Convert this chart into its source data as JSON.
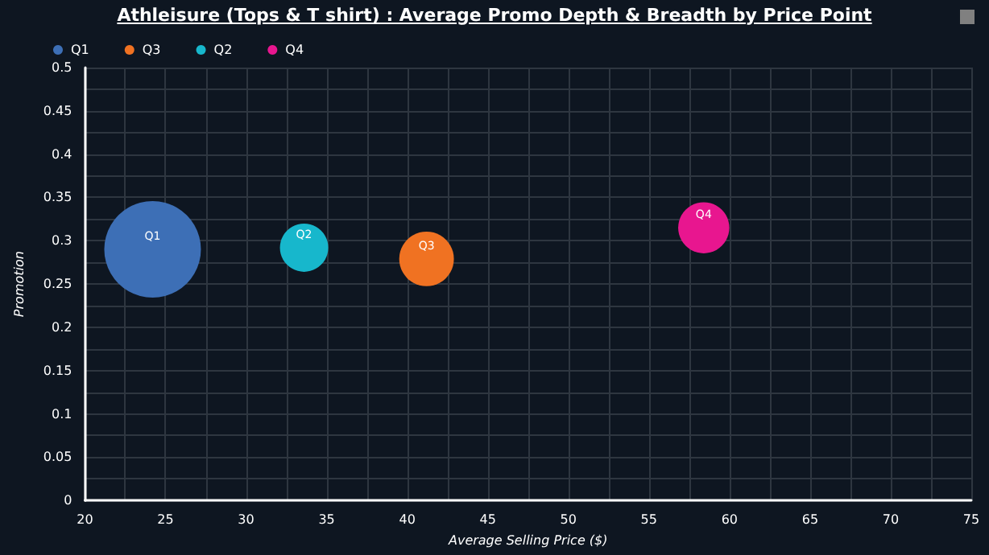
{
  "chart_data": {
    "type": "bubble",
    "title": "Athleisure (Tops & T shirt) : Average Promo Depth & Breadth by Price Point",
    "xlabel": "Average Selling Price ($)",
    "ylabel": "Promotion",
    "series": [
      {
        "name": "Q1",
        "color": "#3d6fb6",
        "x": [
          24.2
        ],
        "values": [
          0.29
        ],
        "sizes": [
          1
        ]
      },
      {
        "name": "Q3",
        "color": "#f07222",
        "x": [
          41.2
        ],
        "values": [
          0.279
        ],
        "sizes": [
          0.32
        ]
      },
      {
        "name": "Q2",
        "color": "#17b7cc",
        "x": [
          33.6
        ],
        "values": [
          0.292
        ],
        "sizes": [
          0.25
        ]
      },
      {
        "name": "Q4",
        "color": "#e8168f",
        "x": [
          58.4
        ],
        "values": [
          0.315
        ],
        "sizes": [
          0.28
        ]
      }
    ],
    "xlim": [
      20,
      75
    ],
    "xticks": [
      20,
      {
        "value": 22.5,
        "label": null
      },
      25,
      {
        "value": 27.5,
        "label": null
      },
      30,
      {
        "value": 32.5,
        "label": null
      },
      35,
      {
        "value": 37.5,
        "label": null
      },
      40,
      {
        "value": 42.5,
        "label": null
      },
      45,
      {
        "value": 47.5,
        "label": null
      },
      50,
      {
        "value": 52.5,
        "label": null
      },
      55,
      {
        "value": 57.5,
        "label": null
      },
      60,
      {
        "value": 62.5,
        "label": null
      },
      65,
      {
        "value": 67.5,
        "label": null
      },
      70,
      {
        "value": 72.5,
        "label": null
      },
      75
    ],
    "ylim": [
      0,
      0.5
    ],
    "yticks": [
      0,
      {
        "value": 0.025,
        "label": null
      },
      0.05,
      {
        "value": 0.075,
        "label": null
      },
      0.1,
      {
        "value": 0.125,
        "label": null
      },
      0.15,
      {
        "value": 0.175,
        "label": null
      },
      0.2,
      {
        "value": 0.225,
        "label": null
      },
      0.25,
      {
        "value": 0.275,
        "label": null
      },
      0.3,
      {
        "value": 0.325,
        "label": null
      },
      0.35,
      {
        "value": 0.375,
        "label": null
      },
      0.4,
      {
        "value": 0.425,
        "label": null
      },
      0.45,
      {
        "value": 0.475,
        "label": null
      },
      0.5
    ],
    "grid": true,
    "legend": "top left"
  }
}
